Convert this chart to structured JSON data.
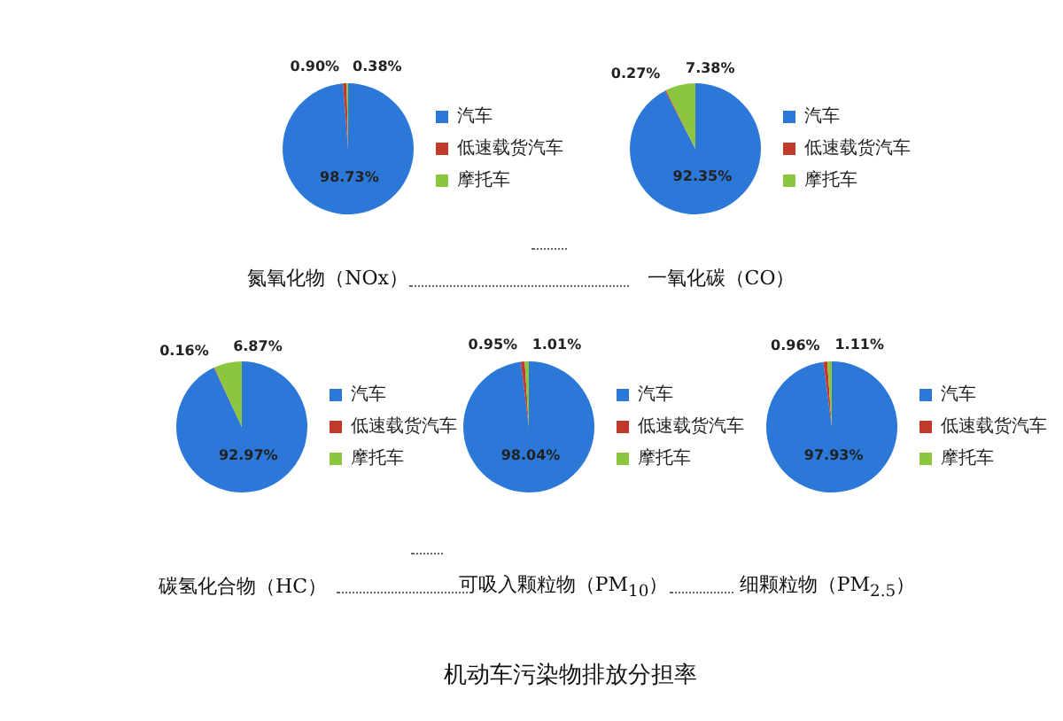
{
  "chart_data": [
    {
      "type": "pie",
      "title": "氮氧化物（NOx）",
      "categories": [
        "汽车",
        "低速载货汽车",
        "摩托车"
      ],
      "values": [
        98.73,
        0.9,
        0.38
      ],
      "value_labels": [
        "98.73%",
        "0.90%",
        "0.38%"
      ],
      "colors": [
        "#2b78d8",
        "#c0392b",
        "#8cc63e"
      ],
      "legend": "right"
    },
    {
      "type": "pie",
      "title": "一氧化碳（CO）",
      "categories": [
        "汽车",
        "低速载货汽车",
        "摩托车"
      ],
      "values": [
        92.35,
        0.27,
        7.38
      ],
      "value_labels": [
        "92.35%",
        "0.27%",
        "7.38%"
      ],
      "colors": [
        "#2b78d8",
        "#c0392b",
        "#8cc63e"
      ],
      "legend": "right"
    },
    {
      "type": "pie",
      "title": "碳氢化合物（HC）",
      "categories": [
        "汽车",
        "低速载货汽车",
        "摩托车"
      ],
      "values": [
        92.97,
        0.16,
        6.87
      ],
      "value_labels": [
        "92.97%",
        "0.16%",
        "6.87%"
      ],
      "colors": [
        "#2b78d8",
        "#c0392b",
        "#8cc63e"
      ],
      "legend": "right"
    },
    {
      "type": "pie",
      "title": "可吸入颗粒物（PM$_{10}$）",
      "categories": [
        "汽车",
        "低速载货汽车",
        "摩托车"
      ],
      "values": [
        98.04,
        0.95,
        1.01
      ],
      "value_labels": [
        "98.04%",
        "0.95%",
        "1.01%"
      ],
      "colors": [
        "#2b78d8",
        "#c0392b",
        "#8cc63e"
      ],
      "legend": "right",
      "annotations": [
        "机动车污染物排放分担率"
      ]
    },
    {
      "type": "pie",
      "title": "细颗粒物（PM$_{2.5}$）",
      "categories": [
        "汽车",
        "低速载货汽车",
        "摩托车"
      ],
      "values": [
        97.93,
        0.96,
        1.11
      ],
      "value_labels": [
        "97.93%",
        "0.96%",
        "1.11%"
      ],
      "colors": [
        "#2b78d8",
        "#c0392b",
        "#8cc63e"
      ],
      "legend": "right"
    }
  ]
}
